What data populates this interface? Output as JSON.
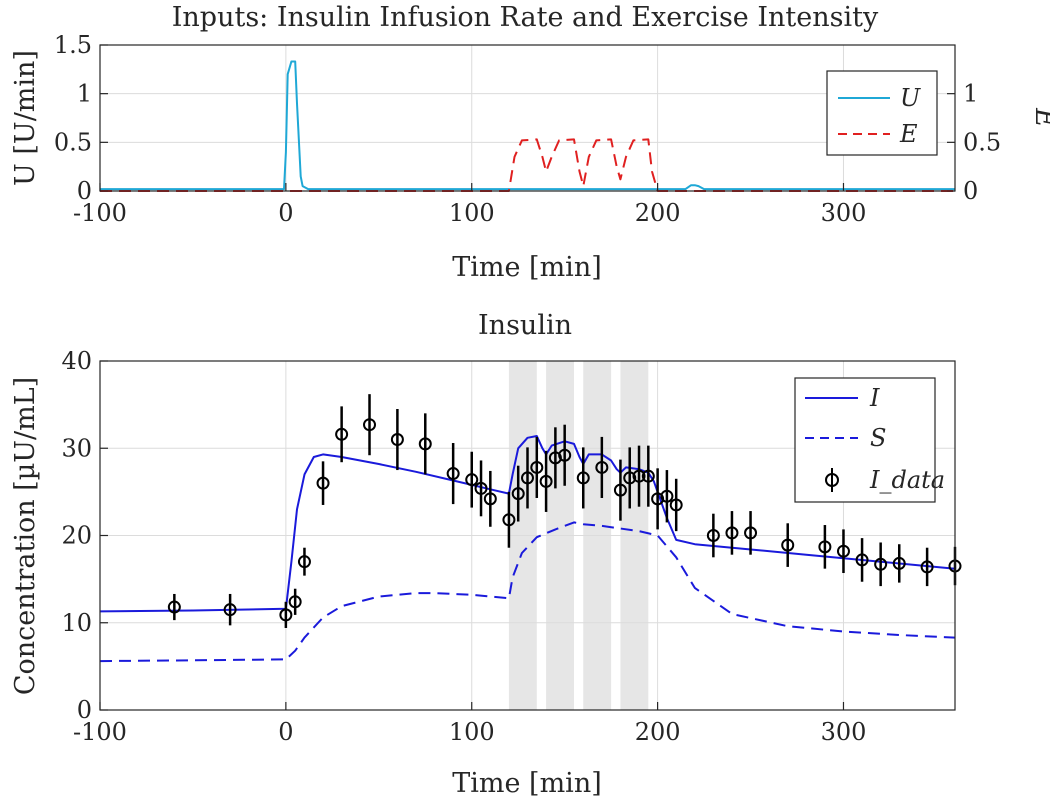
{
  "chart_data": [
    {
      "type": "line",
      "title": "Inputs: Insulin Infusion Rate and Exercise Intensity",
      "xlabel": "Time [min]",
      "ylabel": "U [U/min]",
      "ylabel_right": "E",
      "xlim": [
        -100,
        360
      ],
      "ylim": [
        0,
        1.5
      ],
      "ylim_right": [
        0,
        1.5
      ],
      "xticks": [
        "-100",
        "0",
        "100",
        "200",
        "300"
      ],
      "xtick_values": [
        -100,
        0,
        100,
        200,
        300
      ],
      "yticks": [
        "0",
        "0.5",
        "1",
        "1.5"
      ],
      "ytick_values": [
        0,
        0.5,
        1,
        1.5
      ],
      "yticks_right": [
        "0",
        "0.5",
        "1"
      ],
      "ytick_right_values": [
        0,
        0.5,
        1
      ],
      "legend": [
        "U",
        "E"
      ],
      "series": [
        {
          "name": "U",
          "color": "#1fa8d6",
          "style": "solid",
          "x": [
            -100,
            -1,
            0,
            1,
            3,
            5,
            6,
            8,
            9,
            12,
            215,
            218,
            220,
            222,
            225,
            360
          ],
          "y": [
            0.02,
            0.02,
            0.4,
            1.2,
            1.33,
            1.33,
            0.9,
            0.15,
            0.05,
            0.02,
            0.02,
            0.06,
            0.06,
            0.05,
            0.02,
            0.02
          ]
        },
        {
          "name": "E",
          "color": "#e02020",
          "style": "dashed",
          "x": [
            -100,
            120,
            123,
            127,
            135,
            138,
            140,
            143,
            147,
            155,
            158,
            160,
            163,
            167,
            175,
            178,
            180,
            183,
            187,
            195,
            197,
            200,
            360
          ],
          "y": [
            0,
            0,
            0.35,
            0.52,
            0.53,
            0.35,
            0.2,
            0.35,
            0.52,
            0.53,
            0.2,
            0.05,
            0.35,
            0.52,
            0.53,
            0.25,
            0.12,
            0.35,
            0.52,
            0.53,
            0.2,
            0,
            0
          ]
        }
      ]
    },
    {
      "type": "line",
      "title": "Insulin",
      "xlabel": "Time [min]",
      "ylabel": "Concentration [µU/mL]",
      "xlim": [
        -100,
        360
      ],
      "ylim": [
        0,
        40
      ],
      "xticks": [
        "-100",
        "0",
        "100",
        "200",
        "300"
      ],
      "xtick_values": [
        -100,
        0,
        100,
        200,
        300
      ],
      "yticks": [
        "0",
        "10",
        "20",
        "30",
        "40"
      ],
      "ytick_values": [
        0,
        10,
        20,
        30,
        40
      ],
      "legend": [
        "I",
        "S",
        "I_data"
      ],
      "shaded_intervals": [
        [
          120,
          135
        ],
        [
          140,
          155
        ],
        [
          160,
          175
        ],
        [
          180,
          195
        ]
      ],
      "series": [
        {
          "name": "I",
          "color": "#1a1adb",
          "style": "solid",
          "x": [
            -100,
            -50,
            0,
            3,
            6,
            10,
            15,
            20,
            30,
            50,
            70,
            90,
            110,
            120,
            122,
            125,
            130,
            135,
            138,
            140,
            143,
            150,
            155,
            158,
            160,
            163,
            170,
            175,
            178,
            180,
            183,
            190,
            195,
            198,
            200,
            205,
            210,
            220,
            240,
            280,
            320,
            360
          ],
          "y": [
            11.3,
            11.4,
            11.6,
            17,
            23,
            27,
            29,
            29.3,
            29.0,
            28.2,
            27.3,
            26.3,
            25.3,
            24.8,
            27,
            30,
            31.2,
            31.4,
            30,
            29.3,
            30.3,
            30.8,
            30.5,
            29,
            28.2,
            29.3,
            29.3,
            28.6,
            27.6,
            27.2,
            27.8,
            27.6,
            27.2,
            26.2,
            25,
            22,
            19.5,
            19,
            18.6,
            17.8,
            17.0,
            16.2
          ]
        },
        {
          "name": "S",
          "color": "#1a1adb",
          "style": "dashed",
          "x": [
            -100,
            -50,
            0,
            5,
            10,
            20,
            30,
            50,
            70,
            80,
            100,
            120,
            122,
            127,
            135,
            145,
            155,
            160,
            170,
            180,
            190,
            200,
            210,
            220,
            240,
            270,
            300,
            330,
            360
          ],
          "y": [
            5.6,
            5.7,
            5.8,
            6.8,
            8.3,
            10.6,
            11.9,
            13.0,
            13.4,
            13.4,
            13.2,
            12.8,
            15.2,
            18.0,
            19.8,
            20.7,
            21.5,
            21.3,
            21.1,
            20.8,
            20.5,
            20.0,
            17.5,
            14.0,
            11.0,
            9.6,
            9.0,
            8.6,
            8.3
          ]
        },
        {
          "name": "I_data",
          "color": "#000000",
          "style": "markers",
          "x": [
            -60,
            -30,
            0,
            5,
            10,
            20,
            30,
            45,
            60,
            75,
            90,
            100,
            105,
            110,
            120,
            125,
            130,
            135,
            140,
            145,
            150,
            160,
            170,
            180,
            185,
            190,
            195,
            200,
            205,
            210,
            230,
            240,
            250,
            270,
            290,
            300,
            310,
            320,
            330,
            345,
            360
          ],
          "y": [
            11.8,
            11.5,
            10.9,
            12.4,
            17.0,
            26.0,
            31.6,
            32.7,
            31.0,
            30.5,
            27.1,
            26.4,
            25.4,
            24.2,
            21.8,
            24.8,
            26.6,
            27.8,
            26.2,
            28.9,
            29.2,
            26.6,
            27.8,
            25.2,
            26.6,
            26.8,
            26.8,
            24.2,
            24.5,
            23.5,
            20.0,
            20.3,
            20.3,
            18.9,
            18.7,
            18.2,
            17.2,
            16.7,
            16.8,
            16.4,
            16.5
          ],
          "err": [
            1.5,
            1.8,
            1.5,
            1.5,
            1.6,
            2.5,
            3.2,
            3.5,
            3.5,
            3.5,
            3.5,
            3.2,
            3.2,
            3.2,
            3.2,
            3.2,
            3.5,
            3.5,
            3.5,
            3.5,
            3.5,
            3.5,
            3.5,
            3.5,
            3.5,
            3.5,
            3.5,
            3.5,
            3.0,
            3.0,
            2.5,
            2.5,
            2.5,
            2.5,
            2.5,
            2.5,
            2.5,
            2.5,
            2.2,
            2.2,
            2.2
          ]
        }
      ]
    }
  ]
}
